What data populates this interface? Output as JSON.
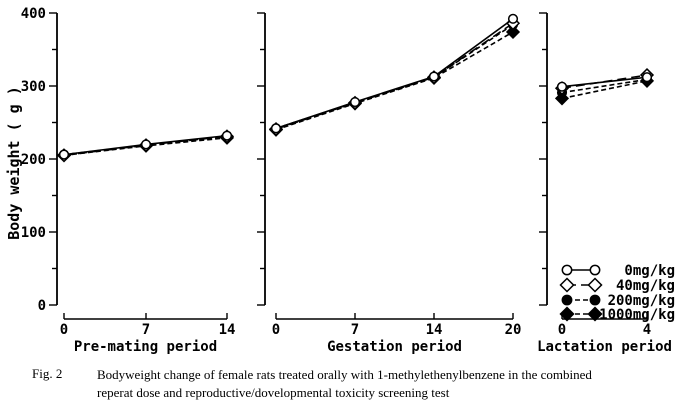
{
  "figure": {
    "caption_label": "Fig. 2",
    "caption_line1": "Bodyweight change of female rats treated orally with 1-methylethenylbenzene in the combined",
    "caption_line2": "reperat dose and reproductive/dovelopmental toxicity screening test"
  },
  "colors": {
    "foreground": "#000000",
    "background": "#ffffff"
  },
  "chart_data": {
    "type": "line",
    "title": "",
    "ylabel": "Body weight ( g )",
    "ylim": [
      0,
      400
    ],
    "yticks": [
      0,
      100,
      200,
      300,
      400
    ],
    "minor_tick_step": 50,
    "grid": false,
    "legend_position": "lower-right",
    "legend": [
      {
        "name": "0mg/kg",
        "marker": "open-circle",
        "line": "solid"
      },
      {
        "name": "40mg/kg",
        "marker": "open-diamond",
        "line": "long-dash"
      },
      {
        "name": "200mg/kg",
        "marker": "filled-circle",
        "line": "dash"
      },
      {
        "name": "1000mg/kg",
        "marker": "filled-diamond",
        "line": "dash"
      }
    ],
    "panels": [
      {
        "xlabel": "Pre-mating period",
        "x": [
          0,
          7,
          14
        ],
        "series": [
          {
            "name": "0mg/kg",
            "values": [
              206,
              220,
              232
            ]
          },
          {
            "name": "40mg/kg",
            "values": [
              205,
              219,
              231
            ]
          },
          {
            "name": "200mg/kg",
            "values": [
              206,
              219,
              230
            ]
          },
          {
            "name": "1000mg/kg",
            "values": [
              205,
              218,
              229
            ]
          }
        ]
      },
      {
        "xlabel": "Gestation period",
        "x": [
          0,
          7,
          14,
          20
        ],
        "series": [
          {
            "name": "0mg/kg",
            "values": [
              242,
              278,
              313,
              392
            ]
          },
          {
            "name": "40mg/kg",
            "values": [
              241,
              277,
              312,
              386
            ]
          },
          {
            "name": "200mg/kg",
            "values": [
              242,
              277,
              312,
              384
            ]
          },
          {
            "name": "1000mg/kg",
            "values": [
              240,
              276,
              311,
              374
            ]
          }
        ]
      },
      {
        "xlabel": "Lactation period",
        "x": [
          0,
          4
        ],
        "series": [
          {
            "name": "0mg/kg",
            "values": [
              299,
              312
            ]
          },
          {
            "name": "40mg/kg",
            "values": [
              297,
              315
            ]
          },
          {
            "name": "200mg/kg",
            "values": [
              291,
              309
            ]
          },
          {
            "name": "1000mg/kg",
            "values": [
              283,
              307
            ]
          }
        ]
      }
    ]
  }
}
